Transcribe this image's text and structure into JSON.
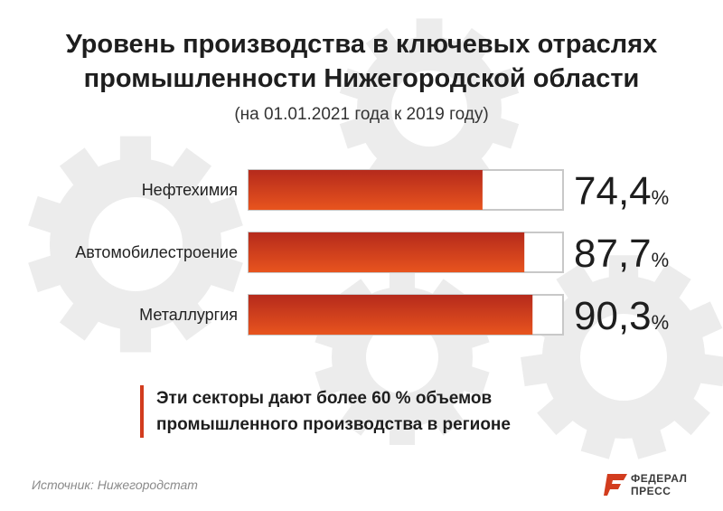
{
  "title_line1": "Уровень производства в ключевых отраслях",
  "title_line2": "промышленности Нижегородской области",
  "subtitle": "(на 01.01.2021 года к 2019 году)",
  "chart_data": {
    "type": "bar",
    "orientation": "horizontal",
    "categories": [
      "Нефтехимия",
      "Автомобилестроение",
      "Металлургия"
    ],
    "values": [
      74.4,
      87.7,
      90.3
    ],
    "value_labels": [
      "74,4",
      "87,7",
      "90,3"
    ],
    "unit": "%",
    "xlim": [
      0,
      100
    ],
    "title": "Уровень производства в ключевых отраслях промышленности Нижегородской области",
    "subtitle": "(на 01.01.2021 года к 2019 году)",
    "bar_gradient": [
      "#b52a1c",
      "#e8541e"
    ],
    "track_border_color": "#c8c8c8"
  },
  "note_line1": "Эти секторы дают более 60 % объемов",
  "note_line2": "промышленного производства в регионе",
  "source": "Источник: Нижегородстат",
  "logo": {
    "line1": "ФЕДЕРАЛ",
    "line2": "ПРЕСС",
    "color": "#d23c1e"
  },
  "accent_color": "#d23c1e",
  "background_decoration": "gear-icon"
}
